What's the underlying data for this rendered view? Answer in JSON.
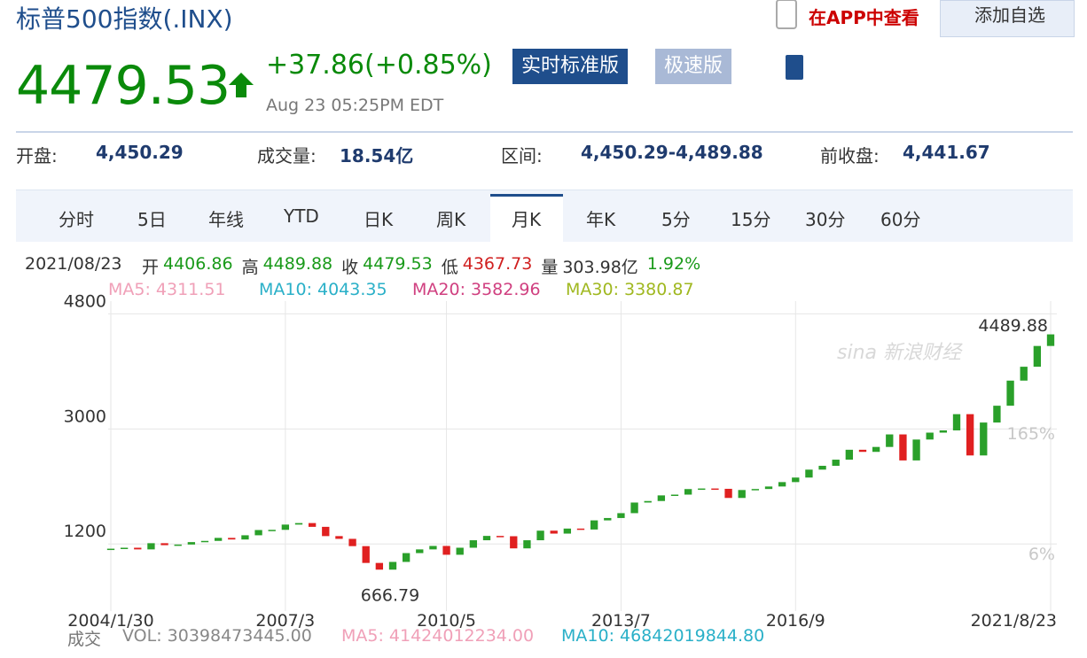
{
  "header": {
    "title": "标普500指数(.INX)",
    "price": "4479.53",
    "change": "+37.86(+0.85%)",
    "time": "Aug 23 05:25PM EDT",
    "buttons": [
      "实时标准版",
      "极速版"
    ],
    "app_link": "在APP中查看",
    "add_button": "添加自选"
  },
  "stats": [
    {
      "label": "开盘:",
      "value": "4,450.29"
    },
    {
      "label": "成交量:",
      "value": "18.54亿"
    },
    {
      "label": "区间:",
      "value": "4,450.29-4,489.88"
    },
    {
      "label": "前收盘:",
      "value": "4,441.67"
    }
  ],
  "tabs": [
    "分时",
    "5日",
    "年线",
    "YTD",
    "日K",
    "周K",
    "月K",
    "年K",
    "5分",
    "15分",
    "30分",
    "60分"
  ],
  "info": {
    "date": "2021/08/23",
    "items": [
      {
        "label": "开",
        "value": "4406.86"
      },
      {
        "label": "高",
        "value": "4489.88"
      },
      {
        "label": "收",
        "value": "4479.53"
      },
      {
        "label": "低",
        "value": "4367.73"
      },
      {
        "label": "量",
        "value": "303.98亿"
      }
    ],
    "pct": "1.92%"
  },
  "ma_legend": [
    "MA5: 4311.51",
    "MA10: 4043.35",
    "MA20: 3582.96",
    "MA30: 3380.87"
  ],
  "volume": {
    "label": "成交",
    "items": [
      "VOL: 30398473445.00",
      "MA5: 41424012234.00",
      "MA10: 46842019844.80"
    ]
  },
  "chart_data": {
    "type": "candlestick",
    "x": [
      "2004/1/30",
      null,
      null,
      null,
      null,
      null,
      null,
      null,
      null,
      null,
      null,
      null,
      null,
      "2007/3",
      null,
      null,
      null,
      null,
      null,
      null,
      null,
      null,
      null,
      null,
      null,
      "2010/5",
      null,
      null,
      null,
      null,
      null,
      null,
      null,
      null,
      null,
      null,
      null,
      null,
      "2013/7",
      null,
      null,
      null,
      null,
      null,
      null,
      null,
      null,
      null,
      null,
      null,
      null,
      "2016/9",
      null,
      null,
      null,
      null,
      null,
      null,
      null,
      null,
      null,
      null,
      null,
      null,
      null,
      null,
      null,
      null,
      null,
      null,
      "2021/8/23"
    ],
    "values": [
      1126,
      1141,
      1115,
      1212,
      1181,
      1191,
      1229,
      1248,
      1295,
      1270,
      1336,
      1418,
      1421,
      1503,
      1527,
      1468,
      1323,
      1280,
      1166,
      903,
      798,
      919,
      1057,
      1115,
      1169,
      1031,
      1141,
      1258,
      1326,
      1321,
      1131,
      1258,
      1408,
      1362,
      1441,
      1426,
      1569,
      1606,
      1682,
      1848,
      1872,
      1960,
      1972,
      2059,
      2068,
      2063,
      1920,
      2044,
      2060,
      2099,
      2168,
      2239,
      2363,
      2423,
      2519,
      2674,
      2641,
      2718,
      2914,
      2507,
      2834,
      2942,
      2977,
      3231,
      2585,
      3100,
      3363,
      3756,
      3973,
      4298,
      4479.53
    ],
    "up_color": "#2aa02a",
    "down_color": "#e02020",
    "ylim": [
      150,
      5000
    ],
    "yticks": [
      1200,
      3000,
      4800
    ],
    "y2lim": [
      -70,
      339
    ],
    "y2ticks": [
      {
        "value": 6,
        "label": "6%"
      },
      {
        "value": 165,
        "label": "165%"
      }
    ],
    "annotations": [
      {
        "label": "4489.88",
        "value": 4489.88
      },
      {
        "label": "666.79",
        "value": 666.79
      }
    ],
    "grid": true,
    "grid_color": "#e6e6e6"
  }
}
